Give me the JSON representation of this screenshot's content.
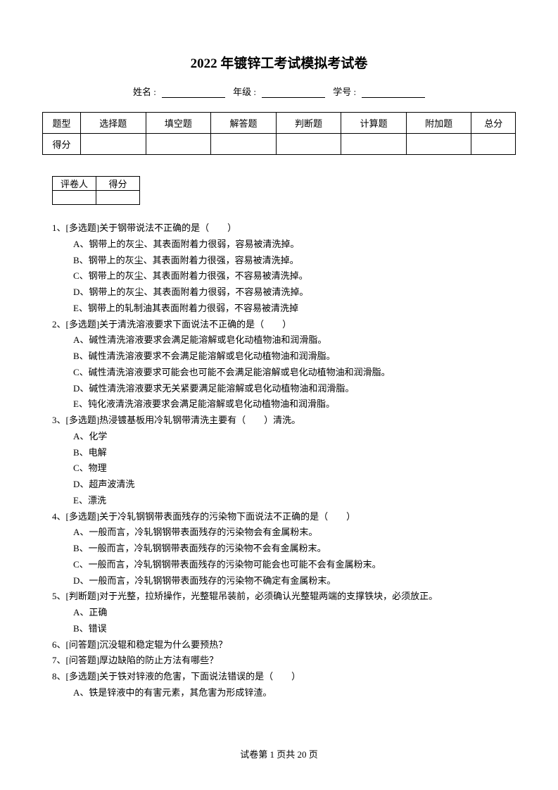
{
  "title": "2022 年镀锌工考试模拟考试卷",
  "info": {
    "name_label": "姓名 :",
    "grade_label": "年级 :",
    "id_label": "学号 :"
  },
  "main_table": {
    "row1": [
      "题型",
      "选择题",
      "填空题",
      "解答题",
      "判断题",
      "计算题",
      "附加题",
      "总分"
    ],
    "row2_label": "得分"
  },
  "grader_table": {
    "h1": "评卷人",
    "h2": "得分"
  },
  "questions": [
    {
      "stem": "1、[多选题]关于钢带说法不正确的是（　　）",
      "opts": [
        "A、钢带上的灰尘、其表面附着力很弱，容易被清洗掉。",
        "B、钢带上的灰尘、其表面附着力很强，容易被清洗掉。",
        "C、钢带上的灰尘、其表面附着力很强，不容易被清洗掉。",
        "D、钢带上的灰尘、其表面附着力很弱，不容易被清洗掉。",
        "E、钢带上的轧制油其表面附着力很弱，不容易被清洗掉"
      ]
    },
    {
      "stem": "2、[多选题]关于清洗溶液要求下面说法不正确的是（　　）",
      "opts": [
        "A、碱性清洗溶液要求会满足能溶解或皂化动植物油和润滑脂。",
        "B、碱性清洗溶液要求不会满足能溶解或皂化动植物油和润滑脂。",
        "C、碱性清洗溶液要求可能会也可能不会满足能溶解或皂化动植物油和润滑脂。",
        "D、碱性清洗溶液要求无关紧要满足能溶解或皂化动植物油和润滑脂。",
        "E、钝化液清洗溶液要求会满足能溶解或皂化动植物油和润滑脂。"
      ]
    },
    {
      "stem": "3、[多选题]热浸镀基板用冷轧钢带清洗主要有（　　）清洗。",
      "opts": [
        "A、化学",
        "B、电解",
        "C、物理",
        "D、超声波清洗",
        "E、漂洗"
      ]
    },
    {
      "stem": "4、[多选题]关于冷轧钢钢带表面残存的污染物下面说法不正确的是（　　）",
      "opts": [
        "A、一般而言，冷轧钢钢带表面残存的污染物会有金属粉末。",
        "B、一般而言，冷轧钢钢带表面残存的污染物不会有金属粉末。",
        "C、一般而言，冷轧钢钢带表面残存的污染物可能会也可能不会有金属粉末。",
        "D、一般而言，冷轧钢钢带表面残存的污染物不确定有金属粉末。"
      ]
    },
    {
      "stem": "5、[判断题]对于光整，拉矫操作，光整辊吊装前，必须确认光整辊两端的支撑铁块，必须放正。",
      "opts": [
        "A、正确",
        "B、错误"
      ]
    },
    {
      "stem": "6、[问答题]沉没辊和稳定辊为什么要预热？",
      "opts": []
    },
    {
      "stem": "7、[问答题]厚边缺陷的防止方法有哪些？",
      "opts": []
    },
    {
      "stem": "8、[多选题]关于铁对锌液的危害，下面说法错误的是（　　）",
      "opts": [
        "A、铁是锌液中的有害元素，其危害为形成锌渣。"
      ]
    }
  ],
  "footer": "试卷第 1 页共 20 页"
}
